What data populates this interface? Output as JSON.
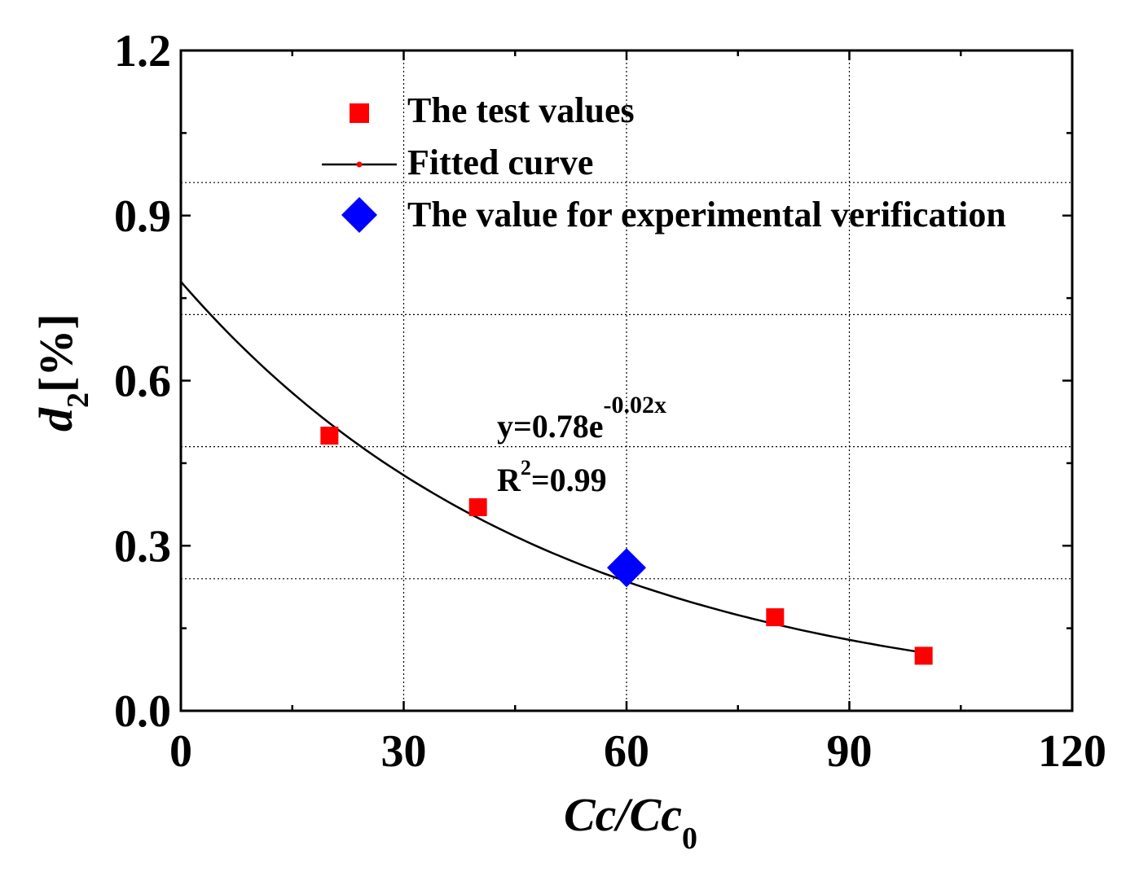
{
  "chart_data": {
    "type": "scatter",
    "xlabel": {
      "main": "Cc/Cc",
      "sub": "0"
    },
    "ylabel": {
      "main": "d",
      "sub": "2",
      "suffix": "[%]"
    },
    "xlim": [
      0,
      120
    ],
    "ylim": [
      0,
      1.2
    ],
    "x_ticks": [
      0,
      30,
      60,
      90,
      120
    ],
    "x_tick_labels": [
      "0",
      "30",
      "60",
      "90",
      "120"
    ],
    "y_ticks": [
      0,
      0.3,
      0.6,
      0.9,
      1.2
    ],
    "y_tick_labels": [
      "0.0",
      "0.3",
      "0.6",
      "0.9",
      "1.2"
    ],
    "grid": true,
    "legend_position": "top",
    "series": [
      {
        "name": "The test values",
        "kind": "scatter",
        "marker": "square",
        "color": "#ff0000",
        "x": [
          20,
          40,
          80,
          100
        ],
        "y": [
          0.5,
          0.37,
          0.17,
          0.1
        ]
      },
      {
        "name": "Fitted curve",
        "kind": "line",
        "color": "#000000",
        "accent": "#ff0000",
        "formula": {
          "a": 0.78,
          "b": -0.02
        },
        "x_range": [
          0,
          100
        ]
      },
      {
        "name": "The value for experimental verification",
        "kind": "scatter",
        "marker": "diamond",
        "color": "#0000ff",
        "x": [
          60
        ],
        "y": [
          0.26
        ]
      }
    ],
    "annotations": {
      "equation": {
        "base": "y=0.78e",
        "exponent": "-0.02x"
      },
      "r2": {
        "base": "R",
        "superscript": "2",
        "value": "=0.99"
      }
    }
  }
}
